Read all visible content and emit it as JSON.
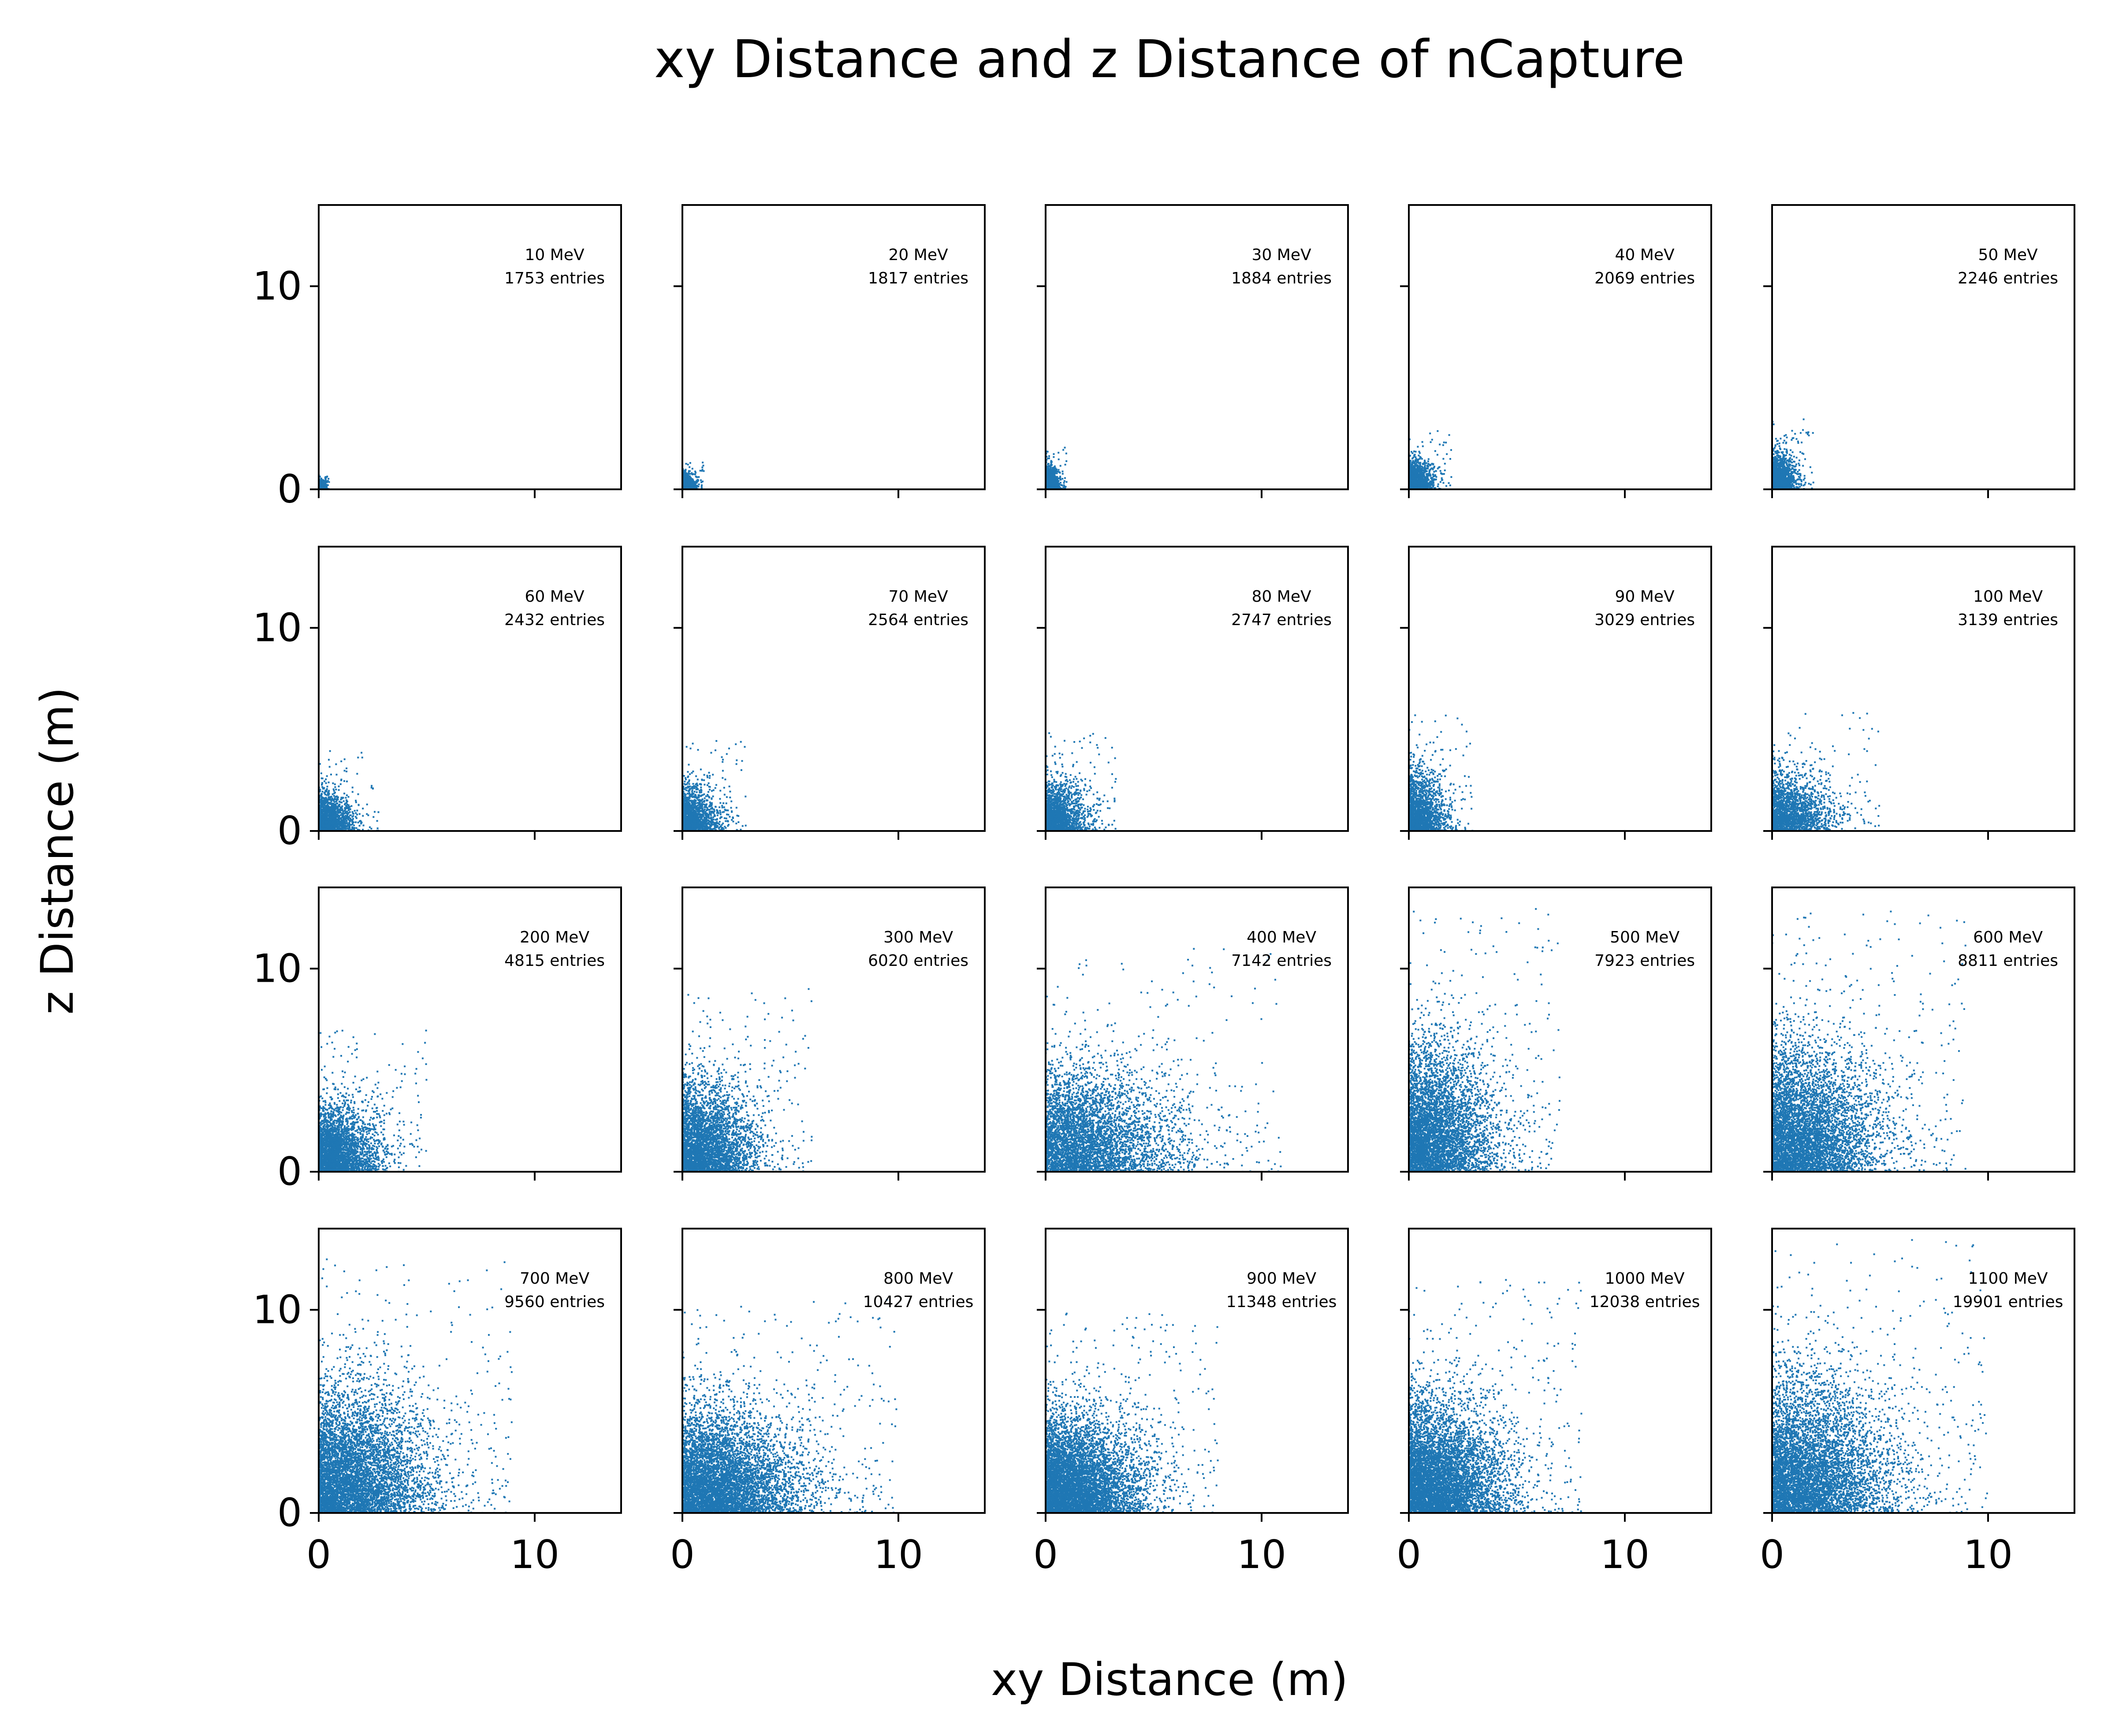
{
  "figure": {
    "title": "xy Distance and z Distance of nCapture",
    "xlabel": "xy Distance (m)",
    "ylabel": "z Distance (m)"
  },
  "chart_data": {
    "type": "scatter",
    "grid": false,
    "layout": {
      "rows": 4,
      "cols": 5,
      "sharex": true,
      "sharey": true
    },
    "xlim": [
      0,
      14
    ],
    "ylim": [
      0,
      14
    ],
    "xticks": [
      0,
      10
    ],
    "yticks": [
      0,
      10
    ],
    "xtick_labels": [
      "0",
      "10"
    ],
    "ytick_labels": [
      "0",
      "10"
    ],
    "marker_color": "#1f77b4",
    "panels": [
      {
        "energy_label": "10 MeV",
        "entries_label": "1753 entries",
        "energy_mev": 10,
        "entries": 1753,
        "x_extent": 0.5,
        "y_extent": 0.7
      },
      {
        "energy_label": "20 MeV",
        "entries_label": "1817 entries",
        "energy_mev": 20,
        "entries": 1817,
        "x_extent": 1.0,
        "y_extent": 1.4
      },
      {
        "energy_label": "30 MeV",
        "entries_label": "1884 entries",
        "energy_mev": 30,
        "entries": 1884,
        "x_extent": 1.0,
        "y_extent": 2.2
      },
      {
        "energy_label": "40 MeV",
        "entries_label": "2069 entries",
        "energy_mev": 40,
        "entries": 2069,
        "x_extent": 2.0,
        "y_extent": 3.0
      },
      {
        "energy_label": "50 MeV",
        "entries_label": "2246 entries",
        "energy_mev": 50,
        "entries": 2246,
        "x_extent": 2.0,
        "y_extent": 3.5
      },
      {
        "energy_label": "60 MeV",
        "entries_label": "2432 entries",
        "energy_mev": 60,
        "entries": 2432,
        "x_extent": 2.8,
        "y_extent": 4.0
      },
      {
        "energy_label": "70 MeV",
        "entries_label": "2564 entries",
        "energy_mev": 70,
        "entries": 2564,
        "x_extent": 3.0,
        "y_extent": 4.5
      },
      {
        "energy_label": "80 MeV",
        "entries_label": "2747 entries",
        "energy_mev": 80,
        "entries": 2747,
        "x_extent": 3.3,
        "y_extent": 5.0
      },
      {
        "energy_label": "90 MeV",
        "entries_label": "3029 entries",
        "energy_mev": 90,
        "entries": 3029,
        "x_extent": 3.0,
        "y_extent": 6.0
      },
      {
        "energy_label": "100 MeV",
        "entries_label": "3139 entries",
        "energy_mev": 100,
        "entries": 3139,
        "x_extent": 5.0,
        "y_extent": 6.0
      },
      {
        "energy_label": "200 MeV",
        "entries_label": "4815 entries",
        "energy_mev": 200,
        "entries": 4815,
        "x_extent": 5.0,
        "y_extent": 7.0
      },
      {
        "energy_label": "300 MeV",
        "entries_label": "6020 entries",
        "energy_mev": 300,
        "entries": 6020,
        "x_extent": 6.0,
        "y_extent": 9.0
      },
      {
        "energy_label": "400 MeV",
        "entries_label": "7142 entries",
        "energy_mev": 400,
        "entries": 7142,
        "x_extent": 11.0,
        "y_extent": 11.0
      },
      {
        "energy_label": "500 MeV",
        "entries_label": "7923 entries",
        "energy_mev": 500,
        "entries": 7923,
        "x_extent": 7.0,
        "y_extent": 13.0
      },
      {
        "energy_label": "600 MeV",
        "entries_label": "8811 entries",
        "energy_mev": 600,
        "entries": 8811,
        "x_extent": 9.0,
        "y_extent": 13.0
      },
      {
        "energy_label": "700 MeV",
        "entries_label": "9560 entries",
        "energy_mev": 700,
        "entries": 9560,
        "x_extent": 9.0,
        "y_extent": 12.5
      },
      {
        "energy_label": "800 MeV",
        "entries_label": "10427 entries",
        "energy_mev": 800,
        "entries": 10427,
        "x_extent": 10.0,
        "y_extent": 10.5
      },
      {
        "energy_label": "900 MeV",
        "entries_label": "11348 entries",
        "energy_mev": 900,
        "entries": 11348,
        "x_extent": 8.0,
        "y_extent": 10.0
      },
      {
        "energy_label": "1000 MeV",
        "entries_label": "12038 entries",
        "energy_mev": 1000,
        "entries": 12038,
        "x_extent": 8.0,
        "y_extent": 11.5
      },
      {
        "energy_label": "1100 MeV",
        "entries_label": "19901 entries",
        "energy_mev": 1100,
        "entries": 19901,
        "x_extent": 10.0,
        "y_extent": 13.5
      }
    ]
  }
}
